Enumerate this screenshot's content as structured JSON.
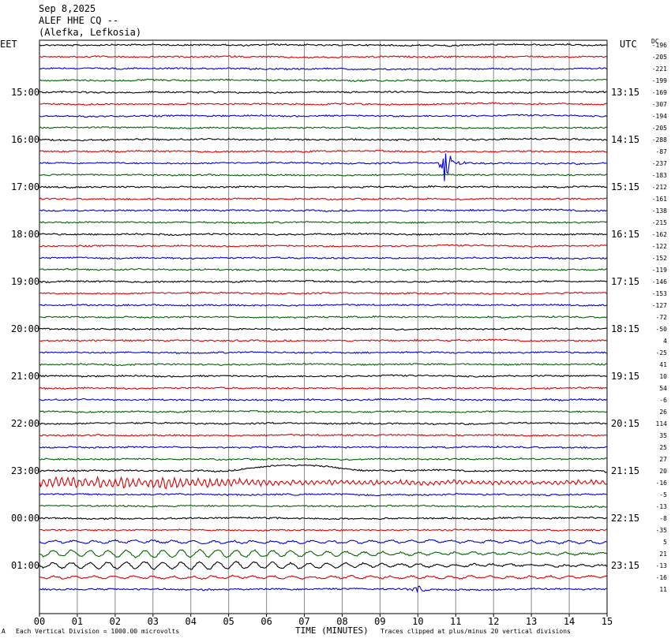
{
  "header": {
    "date": "Sep 8,2025",
    "station": "ALEF HHE CQ --",
    "location": "(Alefka, Lefkosia)"
  },
  "left_tz": "EET",
  "right_tz": "UTC",
  "dc_label": "DC",
  "footer": {
    "scale_note": "Each Vertical Division = 1000.00 microvolts",
    "clip_note": "Traces clipped at plus/minus 20 vertical divisions",
    "corner_mark": "A"
  },
  "chart_data": {
    "type": "line",
    "title": "ALEF HHE CQ --",
    "xlabel": "TIME (MINUTES)",
    "x_ticks": [
      "00",
      "01",
      "02",
      "03",
      "04",
      "05",
      "06",
      "07",
      "08",
      "09",
      "10",
      "11",
      "12",
      "13",
      "14",
      "15"
    ],
    "xlim": [
      0,
      15
    ],
    "grid": true,
    "trace_colors": [
      "#000000",
      "#dd0000",
      "#0000dd",
      "#006400"
    ],
    "left_time_labels": [
      "15:00",
      "16:00",
      "17:00",
      "18:00",
      "19:00",
      "20:00",
      "21:00",
      "22:00",
      "23:00",
      "00:00",
      "01:00"
    ],
    "right_time_labels": [
      "13:15",
      "14:15",
      "15:15",
      "16:15",
      "17:15",
      "18:15",
      "19:15",
      "20:15",
      "21:15",
      "22:15",
      "23:15"
    ],
    "dc_offsets": [
      -196,
      -205,
      -221,
      -199,
      -169,
      -307,
      -194,
      -205,
      -288,
      -87,
      -237,
      -183,
      -212,
      -161,
      -138,
      -215,
      -162,
      -122,
      -152,
      -119,
      -146,
      -153,
      -127,
      -72,
      -50,
      4,
      -25,
      41,
      10,
      54,
      -6,
      26,
      114,
      35,
      25,
      27,
      20,
      -16,
      -5,
      -13,
      -8,
      -35,
      5,
      21,
      -13,
      -16,
      11
    ],
    "events": [
      {
        "row": 10,
        "minute": 10.7,
        "type": "local burst"
      },
      {
        "row": 37,
        "minute": 5.1,
        "type": "teleseismic"
      },
      {
        "row": 36,
        "minute": 5.2,
        "type": "long period"
      },
      {
        "row": 46,
        "minute": 10.0,
        "type": "burst"
      },
      {
        "row": 43,
        "minute": 3.8,
        "type": "microseism"
      },
      {
        "row": 44,
        "minute": 3.8,
        "type": "microseism"
      }
    ]
  }
}
